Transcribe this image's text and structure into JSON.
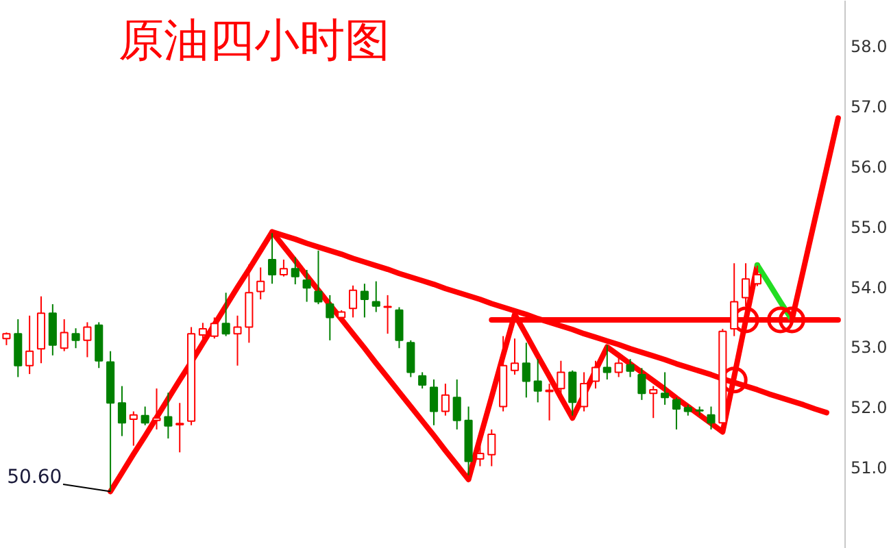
{
  "chart_data": {
    "type": "candlestick",
    "title": "原油四小时图",
    "categories": [
      null,
      null,
      null,
      null,
      null,
      null,
      null,
      null,
      null,
      null,
      null,
      null,
      null,
      null,
      null,
      null,
      null,
      null,
      null,
      null,
      null,
      null,
      null,
      null,
      null,
      null,
      null,
      null,
      null,
      null,
      null,
      null,
      null,
      null,
      null,
      null,
      null,
      null,
      null,
      null,
      null,
      null,
      null,
      null,
      null,
      null,
      null,
      null,
      null,
      null,
      null,
      null,
      null,
      null,
      null,
      null,
      null,
      null,
      null,
      null,
      null,
      null,
      null,
      null,
      null,
      null,
      null,
      null,
      null,
      null,
      null,
      null,
      null
    ],
    "ohlc": [
      [
        53.14,
        53.24,
        53.03,
        53.22
      ],
      [
        53.22,
        53.46,
        52.5,
        52.69
      ],
      [
        52.69,
        53.52,
        52.55,
        52.93
      ],
      [
        52.97,
        53.84,
        52.73,
        53.56
      ],
      [
        53.56,
        53.71,
        52.86,
        53.03
      ],
      [
        52.98,
        53.46,
        52.93,
        53.24
      ],
      [
        53.22,
        53.31,
        52.98,
        53.11
      ],
      [
        53.11,
        53.41,
        52.83,
        53.33
      ],
      [
        53.36,
        53.41,
        52.65,
        52.77
      ],
      [
        52.75,
        52.93,
        50.6,
        52.07
      ],
      [
        52.07,
        52.35,
        51.52,
        51.74
      ],
      [
        51.8,
        51.93,
        51.36,
        51.87
      ],
      [
        51.86,
        52.01,
        51.7,
        51.74
      ],
      [
        51.78,
        52.31,
        51.63,
        51.82
      ],
      [
        51.84,
        52.24,
        51.48,
        51.69
      ],
      [
        51.71,
        52.07,
        51.25,
        51.73
      ],
      [
        51.77,
        53.33,
        51.7,
        53.22
      ],
      [
        53.2,
        53.4,
        53.1,
        53.3
      ],
      [
        53.18,
        53.49,
        53.14,
        53.39
      ],
      [
        53.39,
        53.9,
        53.18,
        53.22
      ],
      [
        53.22,
        53.52,
        52.69,
        53.33
      ],
      [
        53.33,
        54.37,
        53.07,
        53.9
      ],
      [
        53.92,
        54.32,
        53.79,
        54.09
      ],
      [
        54.45,
        54.89,
        54.05,
        54.2
      ],
      [
        54.2,
        54.45,
        54.17,
        54.3
      ],
      [
        54.3,
        54.49,
        54.04,
        54.17
      ],
      [
        54.11,
        54.28,
        53.75,
        53.98
      ],
      [
        53.92,
        54.6,
        53.71,
        53.75
      ],
      [
        53.71,
        53.86,
        53.11,
        53.49
      ],
      [
        53.49,
        53.61,
        53.41,
        53.58
      ],
      [
        53.64,
        54.02,
        53.49,
        53.94
      ],
      [
        53.92,
        54.05,
        53.49,
        53.79
      ],
      [
        53.75,
        54.09,
        53.58,
        53.68
      ],
      [
        53.66,
        53.86,
        53.22,
        53.67
      ],
      [
        53.61,
        53.66,
        52.98,
        53.11
      ],
      [
        53.07,
        53.11,
        52.5,
        52.58
      ],
      [
        52.52,
        52.58,
        52.31,
        52.37
      ],
      [
        52.33,
        52.46,
        51.7,
        51.93
      ],
      [
        51.93,
        52.39,
        51.86,
        52.2
      ],
      [
        52.16,
        52.46,
        51.63,
        51.78
      ],
      [
        51.78,
        52.01,
        50.87,
        51.1
      ],
      [
        51.14,
        51.4,
        51.02,
        51.23
      ],
      [
        51.21,
        51.63,
        51.02,
        51.55
      ],
      [
        52.01,
        53.18,
        51.93,
        52.69
      ],
      [
        52.61,
        53.14,
        52.54,
        52.73
      ],
      [
        52.73,
        53.07,
        52.16,
        52.43
      ],
      [
        52.43,
        52.8,
        52.08,
        52.27
      ],
      [
        52.26,
        52.39,
        51.78,
        52.28
      ],
      [
        52.31,
        52.77,
        52.16,
        52.58
      ],
      [
        52.58,
        52.61,
        51.86,
        52.08
      ],
      [
        52.01,
        52.58,
        51.93,
        52.39
      ],
      [
        52.43,
        52.77,
        52.31,
        52.66
      ],
      [
        52.66,
        53.03,
        52.46,
        52.58
      ],
      [
        52.58,
        52.84,
        52.5,
        52.73
      ],
      [
        52.7,
        52.8,
        52.5,
        52.6
      ],
      [
        52.54,
        52.65,
        52.12,
        52.23
      ],
      [
        52.23,
        52.35,
        51.82,
        52.29
      ],
      [
        52.23,
        52.58,
        52.04,
        52.16
      ],
      [
        52.12,
        52.16,
        51.63,
        51.97
      ],
      [
        51.99,
        52.04,
        51.86,
        51.93
      ],
      [
        51.95,
        52.01,
        51.86,
        51.94
      ],
      [
        51.87,
        52.01,
        51.63,
        51.74
      ],
      [
        51.74,
        53.3,
        51.59,
        53.26
      ],
      [
        53.3,
        54.39,
        53.18,
        53.75
      ],
      [
        53.82,
        54.39,
        53.67,
        54.13
      ],
      [
        54.05,
        54.35,
        54.01,
        54.2
      ],
      null,
      null,
      null,
      null,
      null,
      null,
      null
    ],
    "colors": [
      "#ff0000",
      "#008000",
      "#ff0000",
      "#ff0000",
      "#008000",
      "#ff0000",
      "#008000",
      "#ff0000",
      "#008000",
      "#008000",
      "#008000",
      "#ff0000",
      "#008000",
      "#ff0000",
      "#008000",
      "#ff0000",
      "#ff0000",
      "#ff0000",
      "#ff0000",
      "#008000",
      "#ff0000",
      "#ff0000",
      "#ff0000",
      "#008000",
      "#ff0000",
      "#008000",
      "#008000",
      "#008000",
      "#008000",
      "#ff0000",
      "#ff0000",
      "#008000",
      "#008000",
      "#ff0000",
      "#008000",
      "#008000",
      "#008000",
      "#008000",
      "#ff0000",
      "#008000",
      "#008000",
      "#ff0000",
      "#ff0000",
      "#ff0000",
      "#ff0000",
      "#008000",
      "#008000",
      "#ff0000",
      "#ff0000",
      "#008000",
      "#ff0000",
      "#ff0000",
      "#008000",
      "#ff0000",
      "#008000",
      "#008000",
      "#ff0000",
      "#008000",
      "#008000",
      "#008000",
      "#008000",
      "#008000",
      "#ff0000",
      "#ff0000",
      "#ff0000",
      "#ff0000",
      null,
      null,
      null,
      null,
      null,
      null,
      null
    ],
    "series": [
      {
        "type": "line",
        "color": "#ff0000",
        "values": [
          null,
          null,
          null,
          null,
          null,
          null,
          null,
          null,
          null,
          50.6,
          50.91,
          51.22,
          51.52,
          51.83,
          52.14,
          52.45,
          52.75,
          53.06,
          53.37,
          53.68,
          53.99,
          54.29,
          54.6,
          54.91,
          54.67,
          54.43,
          54.18,
          53.94,
          53.7,
          53.46,
          53.22,
          52.98,
          52.73,
          52.49,
          52.25,
          52.01,
          51.77,
          51.53,
          51.28,
          51.04,
          50.8,
          51.49,
          52.17,
          52.86,
          53.54,
          53.2,
          52.85,
          52.51,
          52.16,
          51.82,
          52.21,
          52.61,
          53.0,
          52.86,
          52.72,
          52.58,
          52.44,
          52.3,
          52.15,
          52.01,
          51.87,
          51.73,
          51.59,
          52.51,
          53.44,
          54.36,
          null,
          null,
          null,
          null,
          null,
          null,
          null
        ]
      },
      {
        "type": "line",
        "color": "#ff0000",
        "values": [
          null,
          null,
          null,
          null,
          null,
          null,
          null,
          null,
          null,
          null,
          null,
          null,
          null,
          null,
          null,
          null,
          null,
          null,
          null,
          null,
          null,
          null,
          null,
          54.91,
          54.85,
          54.79,
          54.72,
          54.66,
          54.6,
          54.54,
          54.47,
          54.41,
          54.35,
          54.29,
          54.22,
          54.16,
          54.1,
          54.04,
          53.97,
          53.91,
          53.85,
          53.79,
          53.72,
          53.66,
          53.6,
          53.54,
          53.47,
          53.41,
          53.35,
          53.29,
          53.22,
          53.16,
          53.1,
          53.04,
          52.97,
          52.91,
          52.85,
          52.79,
          52.72,
          52.66,
          52.6,
          52.54,
          52.47,
          52.41,
          52.35,
          52.29,
          52.22,
          52.16,
          52.1,
          52.04,
          51.97,
          51.91,
          null
        ]
      },
      {
        "type": "line",
        "color": "#ff0000",
        "values": [
          null,
          null,
          null,
          null,
          null,
          null,
          null,
          null,
          null,
          null,
          null,
          null,
          null,
          null,
          null,
          null,
          null,
          null,
          null,
          null,
          null,
          null,
          null,
          null,
          null,
          null,
          null,
          null,
          null,
          null,
          null,
          null,
          null,
          null,
          null,
          null,
          null,
          null,
          null,
          null,
          null,
          null,
          53.45,
          53.45,
          53.45,
          53.45,
          53.45,
          53.45,
          53.45,
          53.45,
          53.45,
          53.45,
          53.45,
          53.45,
          53.45,
          53.45,
          53.45,
          53.45,
          53.45,
          53.45,
          53.45,
          53.45,
          53.45,
          53.45,
          53.45,
          53.45,
          53.45,
          53.45,
          53.45,
          53.45,
          53.45,
          53.45,
          53.45
        ]
      },
      {
        "type": "line",
        "color": "#22dd22",
        "values": [
          null,
          null,
          null,
          null,
          null,
          null,
          null,
          null,
          null,
          null,
          null,
          null,
          null,
          null,
          null,
          null,
          null,
          null,
          null,
          null,
          null,
          null,
          null,
          null,
          null,
          null,
          null,
          null,
          null,
          null,
          null,
          null,
          null,
          null,
          null,
          null,
          null,
          null,
          null,
          null,
          null,
          null,
          null,
          null,
          null,
          null,
          null,
          null,
          null,
          null,
          null,
          null,
          null,
          null,
          null,
          null,
          null,
          null,
          null,
          null,
          null,
          null,
          null,
          null,
          null,
          54.36,
          54.06,
          53.75,
          53.45,
          null,
          null,
          null,
          null
        ]
      },
      {
        "type": "line",
        "color": "#ff0000",
        "values": [
          null,
          null,
          null,
          null,
          null,
          null,
          null,
          null,
          null,
          null,
          null,
          null,
          null,
          null,
          null,
          null,
          null,
          null,
          null,
          null,
          null,
          null,
          null,
          null,
          null,
          null,
          null,
          null,
          null,
          null,
          null,
          null,
          null,
          null,
          null,
          null,
          null,
          null,
          null,
          null,
          null,
          null,
          null,
          null,
          null,
          null,
          null,
          null,
          null,
          null,
          null,
          null,
          null,
          null,
          null,
          null,
          null,
          null,
          null,
          null,
          null,
          null,
          null,
          null,
          null,
          null,
          null,
          null,
          53.45,
          54.29,
          55.13,
          55.96,
          56.8
        ]
      },
      {
        "type": "scatter",
        "marker": "circle",
        "color": "#ff0000",
        "values": [
          null,
          null,
          null,
          null,
          null,
          null,
          null,
          null,
          null,
          null,
          null,
          null,
          null,
          null,
          null,
          null,
          null,
          null,
          null,
          null,
          null,
          null,
          null,
          null,
          null,
          null,
          null,
          null,
          null,
          null,
          null,
          null,
          null,
          null,
          null,
          null,
          null,
          null,
          null,
          null,
          null,
          null,
          null,
          null,
          null,
          null,
          null,
          null,
          null,
          null,
          null,
          null,
          null,
          null,
          null,
          null,
          null,
          null,
          null,
          null,
          null,
          null,
          null,
          52.45,
          53.45,
          null,
          null,
          53.45,
          53.45,
          null,
          null,
          null,
          null
        ]
      }
    ],
    "ylim": [
      49.65,
      58.75
    ],
    "yticks": [
      {
        "value": 51,
        "label": "51.0"
      },
      {
        "value": 52,
        "label": "52.0"
      },
      {
        "value": 53,
        "label": "53.0"
      },
      {
        "value": 54,
        "label": "54.0"
      },
      {
        "value": 55,
        "label": "55.0"
      },
      {
        "value": 56,
        "label": "56.0"
      },
      {
        "value": 57,
        "label": "57.0"
      },
      {
        "value": 58,
        "label": "58.0"
      }
    ],
    "tick_labels": "y",
    "annotations": [
      "50.60"
    ]
  }
}
